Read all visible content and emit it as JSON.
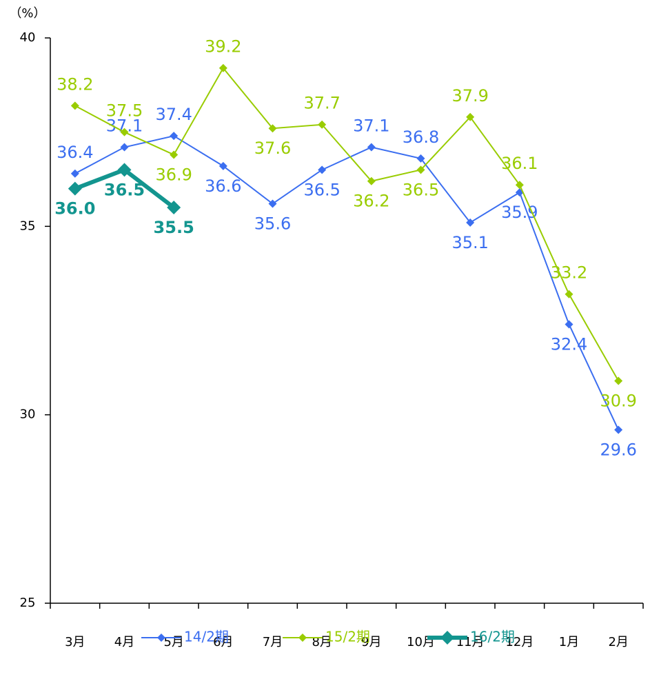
{
  "chart_data": {
    "type": "line",
    "y_unit": "（%）",
    "categories": [
      "3月",
      "4月",
      "5月",
      "6月",
      "7月",
      "8月",
      "9月",
      "10月",
      "11月",
      "12月",
      "1月",
      "2月"
    ],
    "series": [
      {
        "name": "14/2期",
        "color": "#3b6ef0",
        "values": [
          36.4,
          37.1,
          37.4,
          36.6,
          35.6,
          36.5,
          37.1,
          36.8,
          35.1,
          35.9,
          32.4,
          29.6
        ]
      },
      {
        "name": "15/2期",
        "color": "#99cc00",
        "values": [
          38.2,
          37.5,
          36.9,
          39.2,
          37.6,
          37.7,
          36.2,
          36.5,
          37.9,
          36.1,
          33.2,
          30.9
        ]
      },
      {
        "name": "16/2期",
        "color": "#13958f",
        "values": [
          36,
          36.5,
          35.5,
          null,
          null,
          null,
          null,
          null,
          null,
          null,
          null,
          null
        ],
        "value_labels": [
          "36.0",
          "36.5",
          "35.5",
          null,
          null,
          null,
          null,
          null,
          null,
          null,
          null,
          null
        ]
      }
    ],
    "ylim": [
      25,
      40
    ],
    "yticks": [
      25,
      30,
      35,
      40
    ],
    "grid": false,
    "legend": "bottom"
  }
}
